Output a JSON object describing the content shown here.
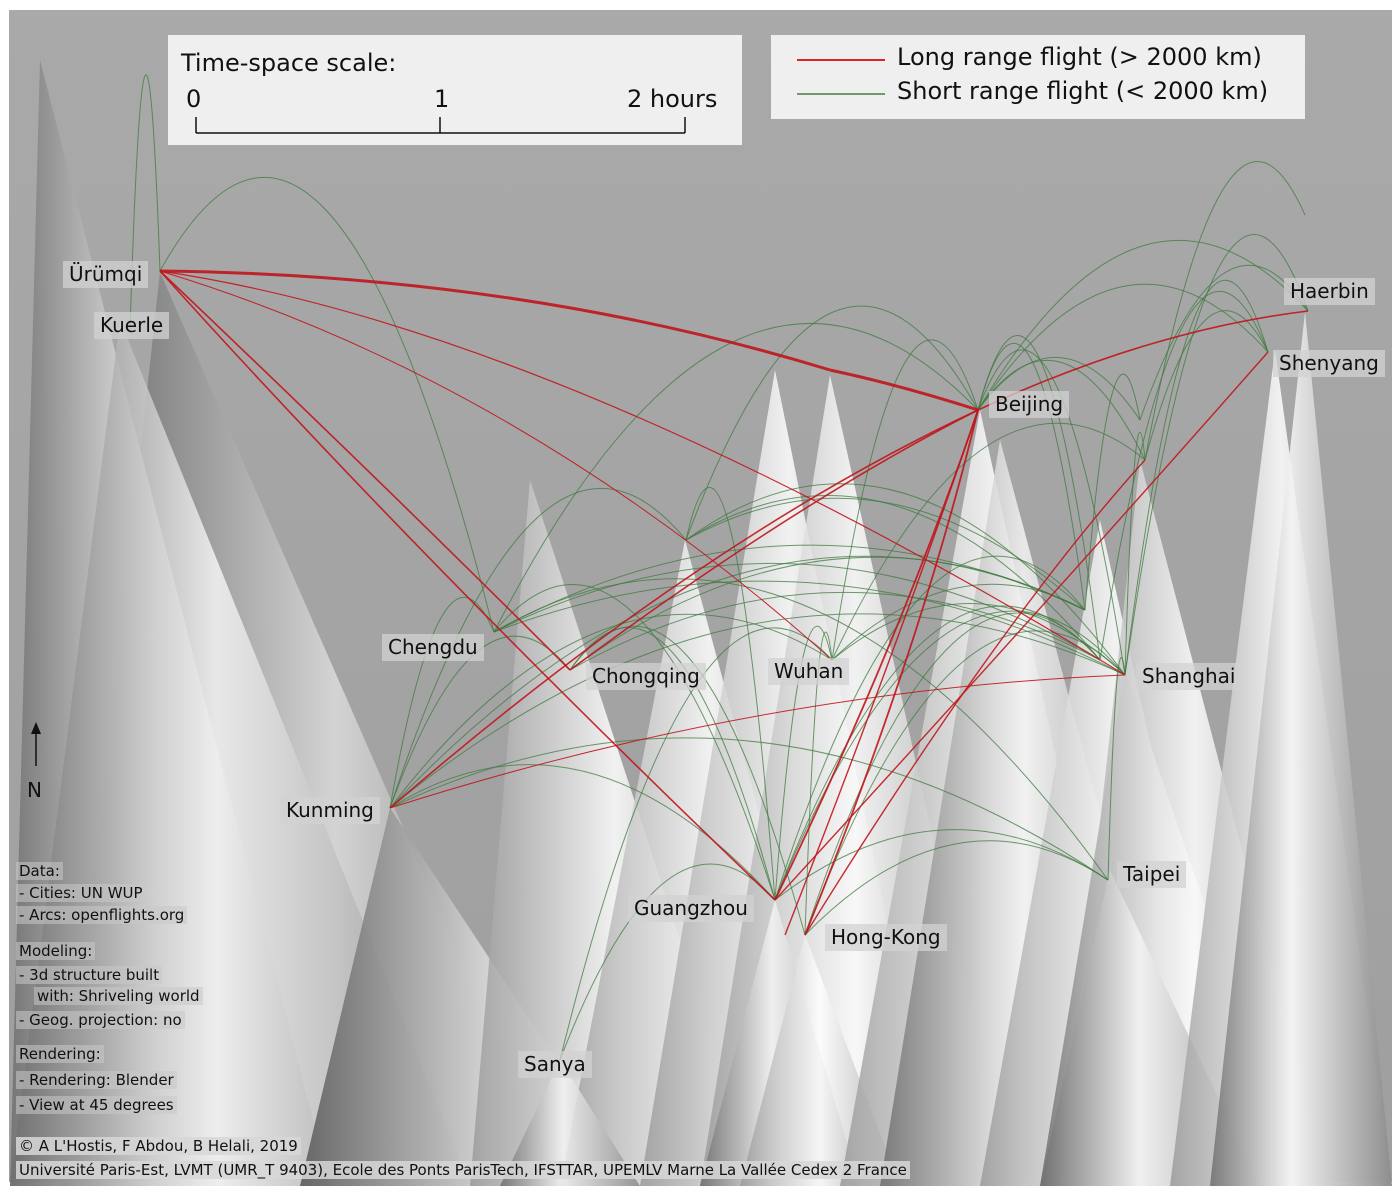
{
  "scale": {
    "title": "Time-space scale:",
    "ticks": [
      "0",
      "1",
      "2 hours"
    ]
  },
  "legend": {
    "items": [
      {
        "label": "Long range flight (> 2000 km)",
        "color": "#d9252a"
      },
      {
        "label": "Short range flight (< 2000 km)",
        "color": "#5a8a5a"
      }
    ]
  },
  "cities": {
    "urumqi": "Ürümqi",
    "kuerle": "Kuerle",
    "haerbin": "Haerbin",
    "shenyang": "Shenyang",
    "beijing": "Beijing",
    "chengdu": "Chengdu",
    "chongqing": "Chongqing",
    "wuhan": "Wuhan",
    "shanghai": "Shanghai",
    "kunming": "Kunming",
    "taipei": "Taipei",
    "guangzhou": "Guangzhou",
    "hongkong": "Hong-Kong",
    "sanya": "Sanya"
  },
  "north_label": "N",
  "notes": {
    "data_title": "Data:",
    "data_cities": "- Cities: UN WUP",
    "data_arcs": "- Arcs: openflights.org",
    "modeling_title": "Modeling:",
    "modeling_3d": "- 3d structure built",
    "modeling_with": "with: Shriveling world",
    "modeling_proj": "- Geog. projection: no",
    "rendering_title": "Rendering:",
    "rendering_blender": "- Rendering: Blender",
    "rendering_view": "- View at 45 degrees"
  },
  "credits": {
    "copyright": "© A L'Hostis, F Abdou, B Helali, 2019",
    "institution": "Université Paris-Est, LVMT (UMR_T 9403), Ecole des Ponts ParisTech, IFSTTAR, UPEMLV Marne La Vallée Cedex 2 France"
  },
  "colors": {
    "background": "#a8a8a8",
    "long_range": "#c0161c",
    "short_range": "#3f7a3f"
  }
}
